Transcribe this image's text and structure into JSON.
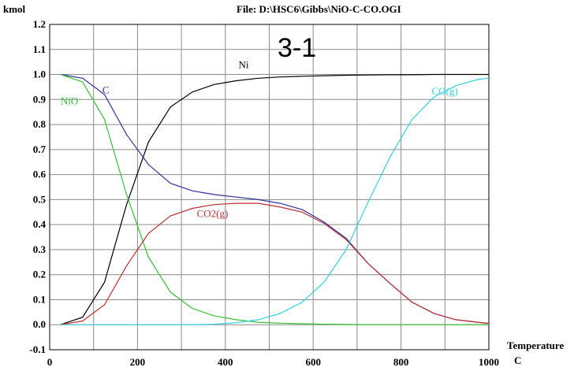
{
  "chart_data": {
    "type": "line",
    "ylabel": "kmol",
    "xlabel_line1": "Temperature",
    "xlabel_line2": "C",
    "file_label": "File: D:\\HSC6\\Gibbs\\NiO-C-CO.OGI",
    "annotation": "3-1",
    "xlim": [
      0,
      1000
    ],
    "ylim": [
      -0.1,
      1.2
    ],
    "x_ticks": [
      "0",
      "200",
      "400",
      "600",
      "800",
      "1000"
    ],
    "y_ticks": [
      "-0.1",
      "0.0",
      "0.1",
      "0.2",
      "0.3",
      "0.4",
      "0.5",
      "0.6",
      "0.7",
      "0.8",
      "0.9",
      "1.0",
      "1.1",
      "1.2"
    ],
    "grid": true,
    "series": [
      {
        "name": "Ni",
        "color": "#000000",
        "label_at": [
          430,
          1.025
        ],
        "x": [
          25,
          75,
          125,
          175,
          225,
          275,
          325,
          375,
          425,
          475,
          525,
          575,
          625,
          675,
          725,
          775,
          825,
          875,
          925,
          975,
          1000
        ],
        "y": [
          0.0,
          0.03,
          0.17,
          0.48,
          0.73,
          0.87,
          0.93,
          0.96,
          0.975,
          0.985,
          0.99,
          0.993,
          0.995,
          0.997,
          0.998,
          0.999,
          0.999,
          1.0,
          1.0,
          1.0,
          1.0
        ]
      },
      {
        "name": "C",
        "color": "#2f2fa0",
        "label_at": [
          120,
          0.925
        ],
        "x": [
          25,
          75,
          125,
          175,
          225,
          275,
          325,
          375,
          425,
          475,
          525,
          575,
          625,
          675,
          725,
          775,
          825,
          875,
          925,
          975,
          1000
        ],
        "y": [
          1.0,
          0.985,
          0.92,
          0.76,
          0.64,
          0.565,
          0.535,
          0.52,
          0.51,
          0.5,
          0.485,
          0.46,
          0.41,
          0.345,
          0.245,
          0.165,
          0.09,
          0.045,
          0.02,
          0.01,
          0.005
        ]
      },
      {
        "name": "NiO",
        "color": "#33c033",
        "label_at": [
          25,
          0.88
        ],
        "x": [
          25,
          75,
          125,
          175,
          225,
          275,
          325,
          375,
          425,
          475,
          525,
          575,
          625,
          675,
          725,
          775,
          825,
          875,
          925,
          975,
          1000
        ],
        "y": [
          1.0,
          0.97,
          0.82,
          0.52,
          0.27,
          0.13,
          0.065,
          0.035,
          0.02,
          0.01,
          0.006,
          0.004,
          0.002,
          0.001,
          0.0,
          0.0,
          0.0,
          0.0,
          0.0,
          0.0,
          0.0
        ]
      },
      {
        "name": "CO2(g)",
        "color": "#c03030",
        "label_at": [
          335,
          0.43
        ],
        "x": [
          25,
          75,
          125,
          175,
          225,
          275,
          325,
          375,
          425,
          475,
          525,
          575,
          625,
          675,
          725,
          775,
          825,
          875,
          925,
          975,
          1000
        ],
        "y": [
          0.0,
          0.015,
          0.08,
          0.235,
          0.365,
          0.435,
          0.465,
          0.48,
          0.485,
          0.485,
          0.47,
          0.45,
          0.405,
          0.34,
          0.245,
          0.165,
          0.09,
          0.045,
          0.02,
          0.01,
          0.005
        ]
      },
      {
        "name": "CO(g)",
        "color": "#33d0e0",
        "label_at": [
          870,
          0.92
        ],
        "x": [
          25,
          325,
          375,
          425,
          475,
          525,
          575,
          625,
          675,
          725,
          775,
          825,
          875,
          925,
          975,
          1000
        ],
        "y": [
          0.0,
          0.0,
          0.002,
          0.008,
          0.02,
          0.045,
          0.09,
          0.17,
          0.3,
          0.49,
          0.67,
          0.82,
          0.91,
          0.955,
          0.98,
          0.985
        ]
      }
    ]
  }
}
